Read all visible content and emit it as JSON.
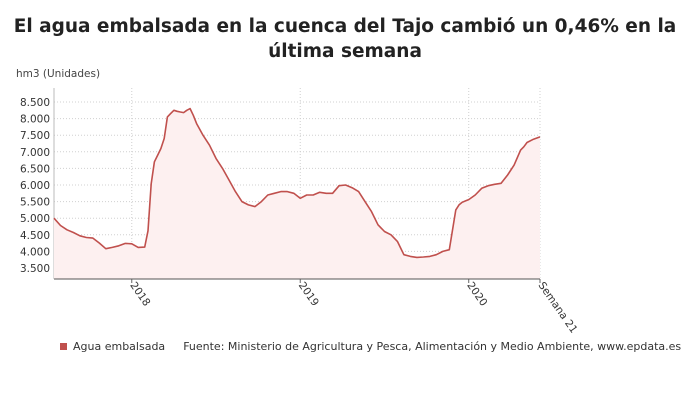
{
  "header": {
    "title_line1": "El agua embalsada en la cuenca del Tajo cambió un 0,46% en la",
    "title_line2": "última semana"
  },
  "legend": {
    "series_label": "Agua embalsada",
    "source": "Fuente: Ministerio de Agricultura y Pesca, Alimentación y Medio Ambiente, www.epdata.es"
  },
  "colors": {
    "line": "#c0504d",
    "fill": "#fdf0f0",
    "grid": "#d0d0d0"
  },
  "chart_data": {
    "type": "area",
    "ylabel": "hm3 (Unidades)",
    "ylim": [
      3500,
      8500
    ],
    "yticks": [
      3500,
      4000,
      4500,
      5000,
      5500,
      6000,
      6500,
      7000,
      7500,
      8000,
      8500
    ],
    "ytick_labels": [
      "3.500",
      "4.000",
      "4.500",
      "5.000",
      "5.500",
      "6.000",
      "6.500",
      "7.000",
      "7.500",
      "8.000",
      "8.500"
    ],
    "xlim": [
      0,
      150
    ],
    "xticks": [
      {
        "x": 24,
        "label": "2018"
      },
      {
        "x": 76,
        "label": "2019"
      },
      {
        "x": 128,
        "label": "2020"
      },
      {
        "x": 150,
        "label": "Semana 21"
      }
    ],
    "grid": "dotted",
    "series": [
      {
        "name": "Agua embalsada",
        "x": [
          0,
          2,
          4,
          6,
          8,
          10,
          12,
          14,
          16,
          18,
          20,
          22,
          24,
          26,
          28,
          29,
          30,
          31,
          32,
          33,
          34,
          35,
          36,
          37,
          38,
          39,
          40,
          41,
          42,
          43,
          44,
          46,
          48,
          50,
          52,
          54,
          56,
          58,
          60,
          62,
          64,
          66,
          68,
          70,
          72,
          74,
          76,
          78,
          80,
          82,
          84,
          86,
          88,
          90,
          92,
          94,
          96,
          98,
          100,
          102,
          104,
          106,
          108,
          110,
          112,
          114,
          116,
          118,
          120,
          122,
          124,
          125,
          126,
          127,
          128,
          130,
          132,
          134,
          136,
          138,
          140,
          142,
          144,
          145,
          146,
          148,
          150
        ],
        "values": [
          5000,
          4780,
          4650,
          4570,
          4470,
          4420,
          4400,
          4250,
          4080,
          4120,
          4170,
          4240,
          4230,
          4120,
          4130,
          4620,
          6040,
          6700,
          6900,
          7100,
          7400,
          8050,
          8150,
          8250,
          8220,
          8200,
          8180,
          8250,
          8300,
          8100,
          7850,
          7500,
          7200,
          6800,
          6500,
          6150,
          5800,
          5500,
          5400,
          5350,
          5500,
          5700,
          5750,
          5800,
          5800,
          5750,
          5600,
          5700,
          5700,
          5780,
          5750,
          5750,
          5980,
          6000,
          5920,
          5800,
          5500,
          5200,
          4800,
          4600,
          4500,
          4300,
          3900,
          3850,
          3820,
          3830,
          3850,
          3900,
          4000,
          4050,
          5250,
          5400,
          5480,
          5520,
          5560,
          5700,
          5900,
          5980,
          6020,
          6050,
          6300,
          6600,
          7050,
          7150,
          7280,
          7380,
          7450
        ]
      }
    ]
  }
}
